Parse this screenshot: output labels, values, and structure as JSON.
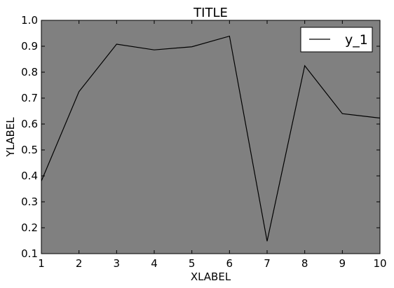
{
  "chart_data": {
    "type": "line",
    "title": "TITLE",
    "xlabel": "XLABEL",
    "ylabel": "YLABEL",
    "xlim": [
      1,
      10
    ],
    "ylim": [
      0.1,
      1.0
    ],
    "x": [
      1,
      2,
      3,
      4,
      5,
      6,
      7,
      8,
      9,
      10
    ],
    "x_ticks": [
      "1",
      "2",
      "3",
      "4",
      "5",
      "6",
      "7",
      "8",
      "9",
      "10"
    ],
    "y_ticks": [
      "0.1",
      "0.2",
      "0.3",
      "0.4",
      "0.5",
      "0.6",
      "0.7",
      "0.8",
      "0.9",
      "1.0"
    ],
    "series": [
      {
        "name": "y_1",
        "values": [
          0.38,
          0.725,
          0.908,
          0.886,
          0.898,
          0.939,
          0.148,
          0.825,
          0.64,
          0.623
        ]
      }
    ],
    "legend_position": "top-right",
    "grid": false,
    "colors": {
      "plot_background": "#808080",
      "line": "#000000",
      "legend_background": "#ffffff"
    }
  }
}
